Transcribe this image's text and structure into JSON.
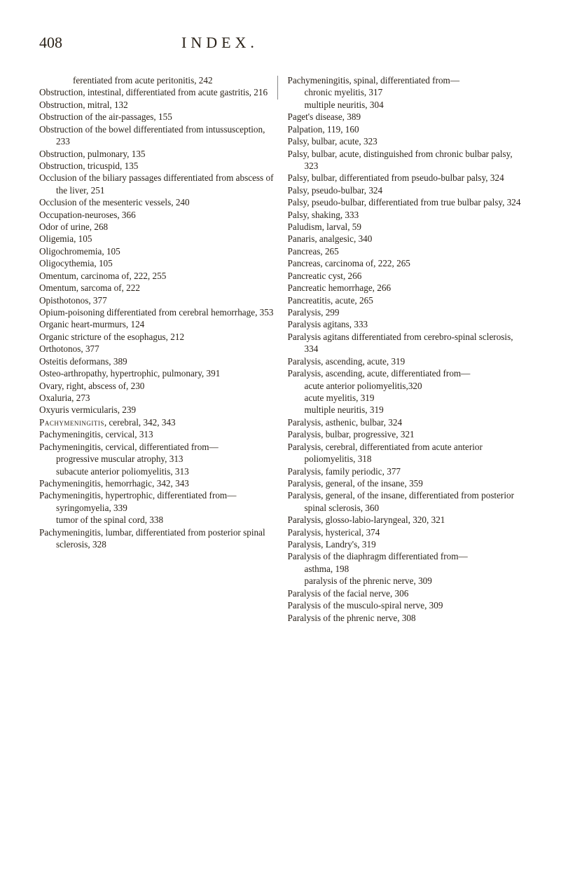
{
  "page_number": "408",
  "header_title": "INDEX.",
  "left_column": [
    {
      "cls": "sub2",
      "text": "ferentiated from acute peritonitis, 242"
    },
    {
      "cls": "entry",
      "text": "Obstruction, intestinal, differentiated from acute gastritis, 216"
    },
    {
      "cls": "entry",
      "text": "Obstruction, mitral, 132"
    },
    {
      "cls": "entry",
      "text": "Obstruction of the air-passages, 155"
    },
    {
      "cls": "entry",
      "text": "Obstruction of the bowel differentiated from intussusception, 233"
    },
    {
      "cls": "entry",
      "text": "Obstruction, pulmonary, 135"
    },
    {
      "cls": "entry",
      "text": "Obstruction, tricuspid, 135"
    },
    {
      "cls": "entry",
      "text": "Occlusion of the biliary passages differentiated from abscess of the liver, 251"
    },
    {
      "cls": "entry",
      "text": "Occlusion of the mesenteric vessels, 240"
    },
    {
      "cls": "entry",
      "text": "Occupation-neuroses, 366"
    },
    {
      "cls": "entry",
      "text": "Odor of urine, 268"
    },
    {
      "cls": "entry",
      "text": "Oligemia, 105"
    },
    {
      "cls": "entry",
      "text": "Oligochromemia, 105"
    },
    {
      "cls": "entry",
      "text": "Oligocythemia, 105"
    },
    {
      "cls": "entry",
      "text": "Omentum, carcinoma of, 222, 255"
    },
    {
      "cls": "entry",
      "text": "Omentum, sarcoma of, 222"
    },
    {
      "cls": "entry",
      "text": "Opisthotonos, 377"
    },
    {
      "cls": "entry",
      "text": "Opium-poisoning differentiated from cerebral hemorrhage, 353"
    },
    {
      "cls": "entry",
      "text": "Organic heart-murmurs, 124"
    },
    {
      "cls": "entry",
      "text": "Organic stricture of the esophagus, 212"
    },
    {
      "cls": "entry",
      "text": "Orthotonos, 377"
    },
    {
      "cls": "entry",
      "text": "Osteitis deformans, 389"
    },
    {
      "cls": "entry",
      "text": "Osteo-arthropathy, hypertrophic, pulmonary, 391"
    },
    {
      "cls": "entry",
      "text": "Ovary, right, abscess of, 230"
    },
    {
      "cls": "entry",
      "text": "Oxaluria, 273"
    },
    {
      "cls": "entry",
      "text": "Oxyuris vermicularis, 239"
    },
    {
      "cls": "entry section-head",
      "html": "<span class=\"smallcaps\">Pachymeningitis</span>, cerebral, 342, 343"
    },
    {
      "cls": "entry",
      "text": "Pachymeningitis, cervical, 313"
    },
    {
      "cls": "entry",
      "text": "Pachymeningitis, cervical, differentiated from—"
    },
    {
      "cls": "sub1",
      "text": "progressive muscular atrophy, 313"
    },
    {
      "cls": "sub1",
      "text": "subacute anterior poliomyelitis, 313"
    },
    {
      "cls": "entry",
      "text": "Pachymeningitis, hemorrhagic, 342, 343"
    },
    {
      "cls": "entry",
      "text": "Pachymeningitis, hypertrophic, differentiated from—"
    },
    {
      "cls": "sub1",
      "text": "syringomyelia, 339"
    },
    {
      "cls": "sub1",
      "text": "tumor of the spinal cord, 338"
    },
    {
      "cls": "entry",
      "text": "Pachymeningitis, lumbar, differentiated from posterior spinal sclerosis, 328"
    }
  ],
  "right_column": [
    {
      "cls": "entry",
      "text": "Pachymeningitis, spinal, differentiated from—"
    },
    {
      "cls": "sub1",
      "text": "chronic myelitis, 317"
    },
    {
      "cls": "sub1",
      "text": "multiple neuritis, 304"
    },
    {
      "cls": "entry",
      "text": "Paget's disease, 389"
    },
    {
      "cls": "entry",
      "text": "Palpation, 119, 160"
    },
    {
      "cls": "entry",
      "text": "Palsy, bulbar, acute, 323"
    },
    {
      "cls": "entry",
      "text": "Palsy, bulbar, acute, distinguished from chronic bulbar palsy, 323"
    },
    {
      "cls": "entry",
      "text": "Palsy, bulbar, differentiated from pseudo-bulbar palsy, 324"
    },
    {
      "cls": "entry",
      "text": "Palsy, pseudo-bulbar, 324"
    },
    {
      "cls": "entry",
      "text": "Palsy, pseudo-bulbar, differentiated from true bulbar palsy, 324"
    },
    {
      "cls": "entry",
      "text": "Palsy, shaking, 333"
    },
    {
      "cls": "entry",
      "text": "Paludism, larval, 59"
    },
    {
      "cls": "entry",
      "text": "Panaris, analgesic, 340"
    },
    {
      "cls": "entry",
      "text": "Pancreas, 265"
    },
    {
      "cls": "entry",
      "text": "Pancreas, carcinoma of, 222, 265"
    },
    {
      "cls": "entry",
      "text": "Pancreatic cyst, 266"
    },
    {
      "cls": "entry",
      "text": "Pancreatic hemorrhage, 266"
    },
    {
      "cls": "entry",
      "text": "Pancreatitis, acute, 265"
    },
    {
      "cls": "entry",
      "text": "Paralysis, 299"
    },
    {
      "cls": "entry",
      "text": "Paralysis agitans, 333"
    },
    {
      "cls": "entry",
      "text": "Paralysis agitans differentiated from cerebro-spinal sclerosis, 334"
    },
    {
      "cls": "entry",
      "text": "Paralysis, ascending, acute, 319"
    },
    {
      "cls": "entry",
      "text": "Paralysis, ascending, acute, differentiated from—"
    },
    {
      "cls": "sub1",
      "text": "acute anterior poliomyelitis,320"
    },
    {
      "cls": "sub1",
      "text": "acute myelitis, 319"
    },
    {
      "cls": "sub1",
      "text": "multiple neuritis, 319"
    },
    {
      "cls": "entry",
      "text": "Paralysis, asthenic, bulbar, 324"
    },
    {
      "cls": "entry",
      "text": "Paralysis, bulbar, progressive, 321"
    },
    {
      "cls": "entry",
      "text": "Paralysis, cerebral, differentiated from acute anterior poliomyelitis, 318"
    },
    {
      "cls": "entry",
      "text": "Paralysis, family periodic, 377"
    },
    {
      "cls": "entry",
      "text": "Paralysis, general, of the insane, 359"
    },
    {
      "cls": "entry",
      "text": "Paralysis, general, of the insane, differentiated from posterior spinal sclerosis, 360"
    },
    {
      "cls": "entry",
      "text": "Paralysis, glosso-labio-laryngeal, 320, 321"
    },
    {
      "cls": "entry",
      "text": "Paralysis, hysterical, 374"
    },
    {
      "cls": "entry",
      "text": "Paralysis, Landry's, 319"
    },
    {
      "cls": "entry",
      "text": "Paralysis of the diaphragm differentiated from—"
    },
    {
      "cls": "sub1",
      "text": "asthma, 198"
    },
    {
      "cls": "sub1",
      "text": "paralysis of the phrenic nerve, 309"
    },
    {
      "cls": "entry",
      "text": "Paralysis of the facial nerve, 306"
    },
    {
      "cls": "entry",
      "text": "Paralysis of the musculo-spiral nerve, 309"
    },
    {
      "cls": "entry",
      "text": "Paralysis of the phrenic nerve, 308"
    }
  ]
}
